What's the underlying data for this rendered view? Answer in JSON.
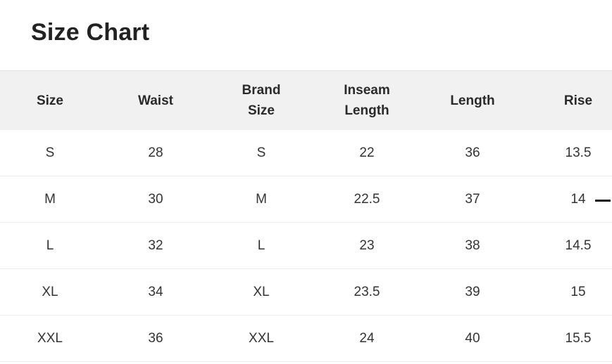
{
  "title": "Size Chart",
  "table": {
    "headers": [
      [
        "Size"
      ],
      [
        "Waist"
      ],
      [
        "Brand",
        "Size"
      ],
      [
        "Inseam",
        "Length"
      ],
      [
        "Length"
      ],
      [
        "Rise"
      ]
    ],
    "rows": [
      [
        "S",
        "28",
        "S",
        "22",
        "36",
        "13.5"
      ],
      [
        "M",
        "30",
        "M",
        "22.5",
        "37",
        "14"
      ],
      [
        "L",
        "32",
        "L",
        "23",
        "38",
        "14.5"
      ],
      [
        "XL",
        "34",
        "XL",
        "23.5",
        "39",
        "15"
      ],
      [
        "XXL",
        "36",
        "XXL",
        "24",
        "40",
        "15.5"
      ]
    ]
  }
}
